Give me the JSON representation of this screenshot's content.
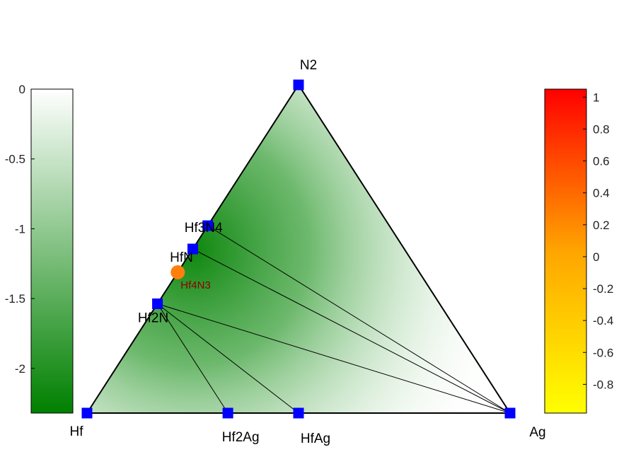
{
  "chart_data": {
    "type": "ternary-phase-diagram",
    "vertices": {
      "left": "Hf",
      "right": "Ag",
      "top": "N2"
    },
    "stable_phases": [
      {
        "label": "N2",
        "composition": {
          "Hf": 0.0,
          "Ag": 0.0,
          "N": 1.0
        }
      },
      {
        "label": "Hf",
        "composition": {
          "Hf": 1.0,
          "Ag": 0.0,
          "N": 0.0
        }
      },
      {
        "label": "Ag",
        "composition": {
          "Hf": 0.0,
          "Ag": 1.0,
          "N": 0.0
        }
      },
      {
        "label": "Hf2Ag",
        "composition": {
          "Hf": 0.667,
          "Ag": 0.333,
          "N": 0.0
        }
      },
      {
        "label": "HfAg",
        "composition": {
          "Hf": 0.5,
          "Ag": 0.5,
          "N": 0.0
        }
      },
      {
        "label": "Hf2N",
        "composition": {
          "Hf": 0.667,
          "Ag": 0.0,
          "N": 0.333
        }
      },
      {
        "label": "HfN",
        "composition": {
          "Hf": 0.5,
          "Ag": 0.0,
          "N": 0.5
        }
      },
      {
        "label": "Hf3N4",
        "composition": {
          "Hf": 0.429,
          "Ag": 0.0,
          "N": 0.571
        }
      }
    ],
    "unstable_phases": [
      {
        "label": "Hf4N3",
        "composition": {
          "Hf": 0.571,
          "Ag": 0.0,
          "N": 0.429
        }
      }
    ],
    "tie_lines": [
      [
        "Hf2N",
        "Hf2Ag"
      ],
      [
        "Hf2N",
        "HfAg"
      ],
      [
        "Hf2N",
        "Ag"
      ],
      [
        "HfN",
        "Ag"
      ],
      [
        "Hf3N4",
        "Ag"
      ]
    ],
    "formation_energy_colorbar": {
      "ticks": [
        "0",
        "-0.5",
        "-1",
        "-1.5",
        "-2"
      ],
      "tick_values": [
        0,
        -0.5,
        -1,
        -1.5,
        -2
      ],
      "range": [
        -2.32,
        0
      ],
      "color_low": "#008000",
      "color_high": "#ffffff"
    },
    "hull_distance_colorbar": {
      "ticks": [
        "1",
        "0.8",
        "0.6",
        "0.4",
        "0.2",
        "0",
        "-0.2",
        "-0.4",
        "-0.6",
        "-0.8"
      ],
      "tick_values": [
        1,
        0.8,
        0.6,
        0.4,
        0.2,
        0,
        -0.2,
        -0.4,
        -0.6,
        -0.8
      ],
      "range": [
        -0.98,
        1.05
      ],
      "color_low": "#ffff00",
      "color_high": "#ff0000"
    },
    "colors": {
      "stable_marker": "#0000ff",
      "unstable_marker": "#ff7f0e",
      "unstable_label": "#8b0000",
      "triangle_edge": "#000000",
      "green": "#008000"
    }
  }
}
